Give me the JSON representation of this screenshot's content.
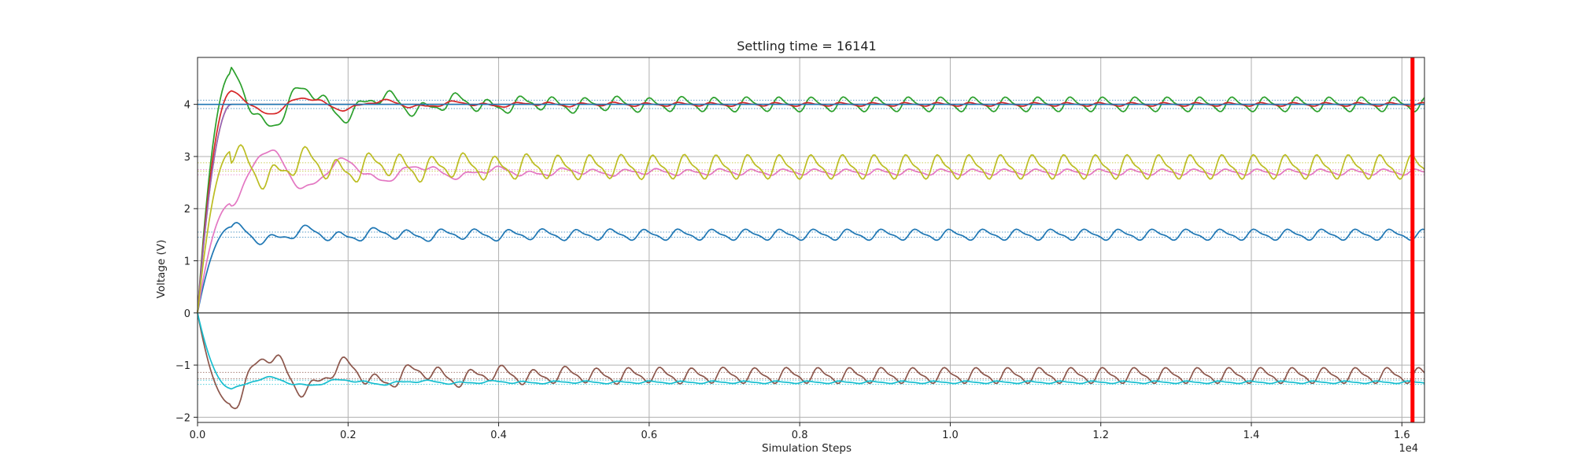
{
  "chart_data": {
    "type": "line",
    "title": "Settling time = 16141",
    "xlabel": "Simulation Steps",
    "ylabel": "Voltage (V)",
    "x_offset_label": "1e4",
    "xlim": [
      0,
      16300
    ],
    "ylim": [
      -2.1,
      4.9
    ],
    "xticks": [
      0,
      2000,
      4000,
      6000,
      8000,
      10000,
      12000,
      14000,
      16000
    ],
    "xtick_labels": [
      "0.0",
      "0.2",
      "0.4",
      "0.6",
      "0.8",
      "1.0",
      "1.2",
      "1.4",
      "1.6"
    ],
    "yticks": [
      -2,
      -1,
      0,
      1,
      2,
      3,
      4
    ],
    "ytick_labels": [
      "−2",
      "−1",
      "0",
      "1",
      "2",
      "3",
      "4"
    ],
    "grid": true,
    "settling_marker": {
      "x": 16141,
      "color": "#ff0000"
    },
    "zero_line_color": "#555555",
    "series": [
      {
        "color": "#1f77b4",
        "start": 0,
        "target": 1.5,
        "amp": 0.09,
        "period": 450,
        "overshoot": 1.65
      },
      {
        "color": "#ff7f0e",
        "start": 0,
        "target": 4.0,
        "amp": 0.0,
        "period": 450,
        "overshoot": 4.0
      },
      {
        "color": "#2ca02c",
        "start": 0,
        "target": 4.0,
        "amp": 0.12,
        "period": 430,
        "overshoot": 4.6
      },
      {
        "color": "#d62728",
        "start": 0,
        "target": 4.0,
        "amp": 0.03,
        "period": 430,
        "overshoot": 4.25
      },
      {
        "color": "#9467bd",
        "start": 0,
        "target": 4.0,
        "amp": 0.0,
        "period": 430,
        "overshoot": 4.0
      },
      {
        "color": "#8c564b",
        "start": 0,
        "target": -1.2,
        "amp": 0.13,
        "period": 420,
        "overshoot": -1.75
      },
      {
        "color": "#e377c2",
        "start": 0,
        "target": 2.7,
        "amp": 0.05,
        "period": 420,
        "overshoot": 2.1
      },
      {
        "color": "#bcbd22",
        "start": 0,
        "target": 2.8,
        "amp": 0.2,
        "period": 420,
        "overshoot": 3.1
      },
      {
        "color": "#17becf",
        "start": 0,
        "target": -1.33,
        "amp": 0.02,
        "period": 420,
        "overshoot": -1.45
      },
      {
        "color": "#1f77b4",
        "start": 4.0,
        "target": 4.0,
        "amp": 0.0,
        "period": 420,
        "overshoot": 4.0
      }
    ],
    "tolerance_bands": [
      {
        "center": 4.0,
        "half_width": 0.08,
        "color": "#1f77b4"
      },
      {
        "center": 2.8,
        "half_width": 0.08,
        "color": "#bcbd22"
      },
      {
        "center": 2.7,
        "half_width": 0.05,
        "color": "#e377c2"
      },
      {
        "center": 1.5,
        "half_width": 0.05,
        "color": "#1f77b4"
      },
      {
        "center": -1.2,
        "half_width": 0.06,
        "color": "#8c564b"
      },
      {
        "center": -1.33,
        "half_width": 0.04,
        "color": "#17becf"
      }
    ]
  }
}
